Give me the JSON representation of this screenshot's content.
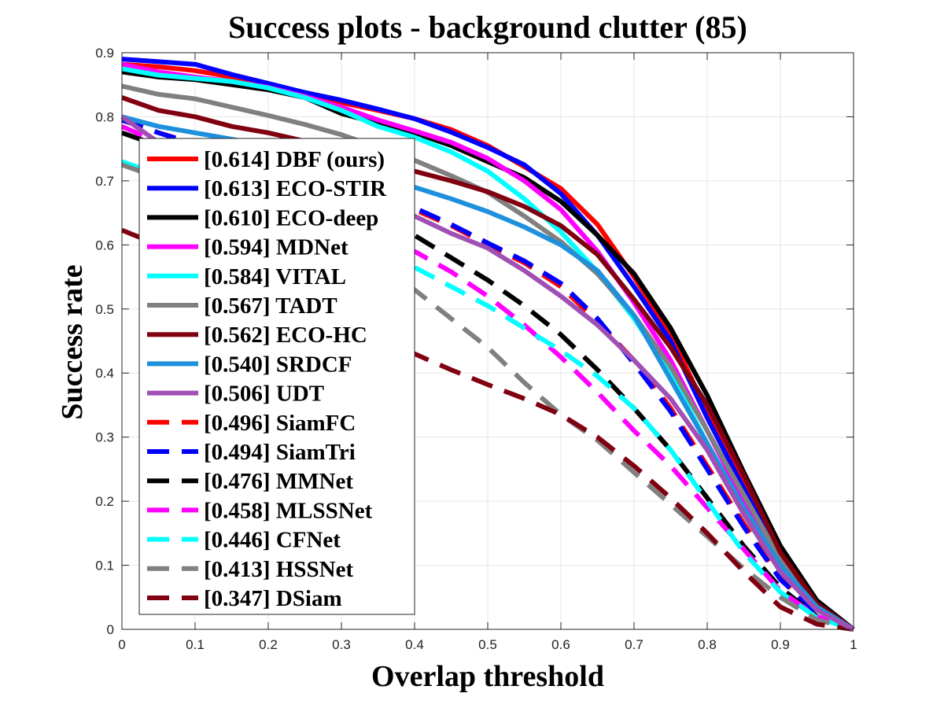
{
  "chart_data": {
    "type": "line",
    "title": "Success plots - background clutter (85)",
    "xlabel": "Overlap threshold",
    "ylabel": "Success rate",
    "xlim": [
      0,
      1
    ],
    "ylim": [
      0,
      0.9
    ],
    "xticks": [
      "0",
      "0.1",
      "0.2",
      "0.3",
      "0.4",
      "0.5",
      "0.6",
      "0.7",
      "0.8",
      "0.9",
      "1"
    ],
    "yticks": [
      "0",
      "0.1",
      "0.2",
      "0.3",
      "0.4",
      "0.5",
      "0.6",
      "0.7",
      "0.8",
      "0.9"
    ],
    "grid": true,
    "legend_position": "left",
    "x": [
      0,
      0.05,
      0.1,
      0.15,
      0.2,
      0.25,
      0.3,
      0.35,
      0.4,
      0.45,
      0.5,
      0.55,
      0.6,
      0.65,
      0.7,
      0.75,
      0.8,
      0.85,
      0.9,
      0.95,
      1
    ],
    "series": [
      {
        "name": "[0.614] DBF (ours)",
        "color": "#ff0000",
        "dash": false,
        "values": [
          0.882,
          0.878,
          0.872,
          0.862,
          0.85,
          0.835,
          0.822,
          0.81,
          0.797,
          0.78,
          0.755,
          0.722,
          0.688,
          0.632,
          0.55,
          0.46,
          0.34,
          0.23,
          0.12,
          0.04,
          0
        ]
      },
      {
        "name": "[0.613] ECO-STIR",
        "color": "#0000ff",
        "dash": false,
        "values": [
          0.89,
          0.886,
          0.882,
          0.866,
          0.852,
          0.838,
          0.826,
          0.812,
          0.797,
          0.776,
          0.752,
          0.725,
          0.68,
          0.615,
          0.535,
          0.45,
          0.33,
          0.22,
          0.11,
          0.035,
          0
        ]
      },
      {
        "name": "[0.610] ECO-deep",
        "color": "#000000",
        "dash": false,
        "values": [
          0.87,
          0.862,
          0.858,
          0.85,
          0.842,
          0.83,
          0.805,
          0.79,
          0.775,
          0.755,
          0.73,
          0.705,
          0.668,
          0.615,
          0.555,
          0.47,
          0.365,
          0.245,
          0.13,
          0.045,
          0
        ]
      },
      {
        "name": "[0.594] MDNet",
        "color": "#ff00ff",
        "dash": false,
        "values": [
          0.882,
          0.87,
          0.862,
          0.855,
          0.846,
          0.832,
          0.815,
          0.795,
          0.778,
          0.76,
          0.735,
          0.7,
          0.655,
          0.59,
          0.51,
          0.42,
          0.31,
          0.2,
          0.1,
          0.03,
          0
        ]
      },
      {
        "name": "[0.584] VITAL",
        "color": "#00ffff",
        "dash": false,
        "values": [
          0.875,
          0.865,
          0.86,
          0.855,
          0.845,
          0.83,
          0.81,
          0.785,
          0.768,
          0.745,
          0.715,
          0.672,
          0.62,
          0.558,
          0.485,
          0.4,
          0.29,
          0.18,
          0.09,
          0.03,
          0
        ]
      },
      {
        "name": "[0.567] TADT",
        "color": "#808080",
        "dash": false,
        "values": [
          0.848,
          0.835,
          0.828,
          0.815,
          0.802,
          0.788,
          0.772,
          0.752,
          0.732,
          0.708,
          0.682,
          0.645,
          0.605,
          0.555,
          0.49,
          0.41,
          0.31,
          0.21,
          0.11,
          0.035,
          0
        ]
      },
      {
        "name": "[0.562] ECO-HC",
        "color": "#800010",
        "dash": false,
        "values": [
          0.83,
          0.81,
          0.8,
          0.785,
          0.775,
          0.762,
          0.748,
          0.73,
          0.715,
          0.7,
          0.683,
          0.66,
          0.63,
          0.585,
          0.515,
          0.44,
          0.35,
          0.24,
          0.12,
          0.04,
          0
        ]
      },
      {
        "name": "[0.540] SRDCF",
        "color": "#1e90dc",
        "dash": false,
        "values": [
          0.8,
          0.785,
          0.775,
          0.765,
          0.755,
          0.742,
          0.728,
          0.712,
          0.69,
          0.672,
          0.652,
          0.628,
          0.6,
          0.56,
          0.49,
          0.39,
          0.29,
          0.19,
          0.1,
          0.035,
          0
        ]
      },
      {
        "name": "[0.506] UDT",
        "color": "#a050b4",
        "dash": false,
        "values": [
          0.8,
          0.76,
          0.74,
          0.725,
          0.71,
          0.695,
          0.68,
          0.665,
          0.645,
          0.618,
          0.595,
          0.56,
          0.52,
          0.475,
          0.42,
          0.36,
          0.28,
          0.18,
          0.09,
          0.03,
          0
        ]
      },
      {
        "name": "[0.496] SiamFC",
        "color": "#ff0000",
        "dash": true,
        "values": [
          0.795,
          0.775,
          0.758,
          0.738,
          0.72,
          0.702,
          0.685,
          0.67,
          0.655,
          0.63,
          0.6,
          0.572,
          0.535,
          0.48,
          0.42,
          0.345,
          0.255,
          0.165,
          0.08,
          0.025,
          0
        ]
      },
      {
        "name": "[0.494] SiamTri",
        "color": "#0000ff",
        "dash": true,
        "values": [
          0.795,
          0.775,
          0.757,
          0.738,
          0.72,
          0.703,
          0.686,
          0.672,
          0.658,
          0.632,
          0.603,
          0.575,
          0.54,
          0.485,
          0.415,
          0.34,
          0.25,
          0.16,
          0.078,
          0.025,
          0
        ]
      },
      {
        "name": "[0.476] MMNet",
        "color": "#000000",
        "dash": true,
        "values": [
          0.775,
          0.755,
          0.735,
          0.715,
          0.695,
          0.67,
          0.65,
          0.635,
          0.615,
          0.58,
          0.545,
          0.505,
          0.46,
          0.405,
          0.345,
          0.28,
          0.205,
          0.13,
          0.065,
          0.02,
          0
        ]
      },
      {
        "name": "[0.458] MLSSNet",
        "color": "#ff00ff",
        "dash": true,
        "values": [
          0.785,
          0.76,
          0.74,
          0.72,
          0.7,
          0.675,
          0.65,
          0.62,
          0.59,
          0.558,
          0.52,
          0.475,
          0.425,
          0.37,
          0.31,
          0.255,
          0.19,
          0.125,
          0.06,
          0.02,
          0
        ]
      },
      {
        "name": "[0.446] CFNet",
        "color": "#00ffff",
        "dash": true,
        "values": [
          0.73,
          0.71,
          0.69,
          0.67,
          0.65,
          0.63,
          0.61,
          0.59,
          0.565,
          0.535,
          0.505,
          0.47,
          0.435,
          0.395,
          0.345,
          0.28,
          0.2,
          0.12,
          0.058,
          0.018,
          0
        ]
      },
      {
        "name": "[0.413] HSSNet",
        "color": "#808080",
        "dash": true,
        "values": [
          0.725,
          0.705,
          0.685,
          0.66,
          0.635,
          0.61,
          0.585,
          0.555,
          0.53,
          0.485,
          0.44,
          0.385,
          0.335,
          0.295,
          0.245,
          0.195,
          0.145,
          0.095,
          0.05,
          0.015,
          0
        ]
      },
      {
        "name": "[0.347] DSiam",
        "color": "#800010",
        "dash": true,
        "values": [
          0.623,
          0.6,
          0.575,
          0.545,
          0.515,
          0.49,
          0.465,
          0.445,
          0.43,
          0.405,
          0.382,
          0.36,
          0.335,
          0.3,
          0.255,
          0.205,
          0.15,
          0.09,
          0.035,
          0.008,
          0
        ]
      }
    ]
  }
}
